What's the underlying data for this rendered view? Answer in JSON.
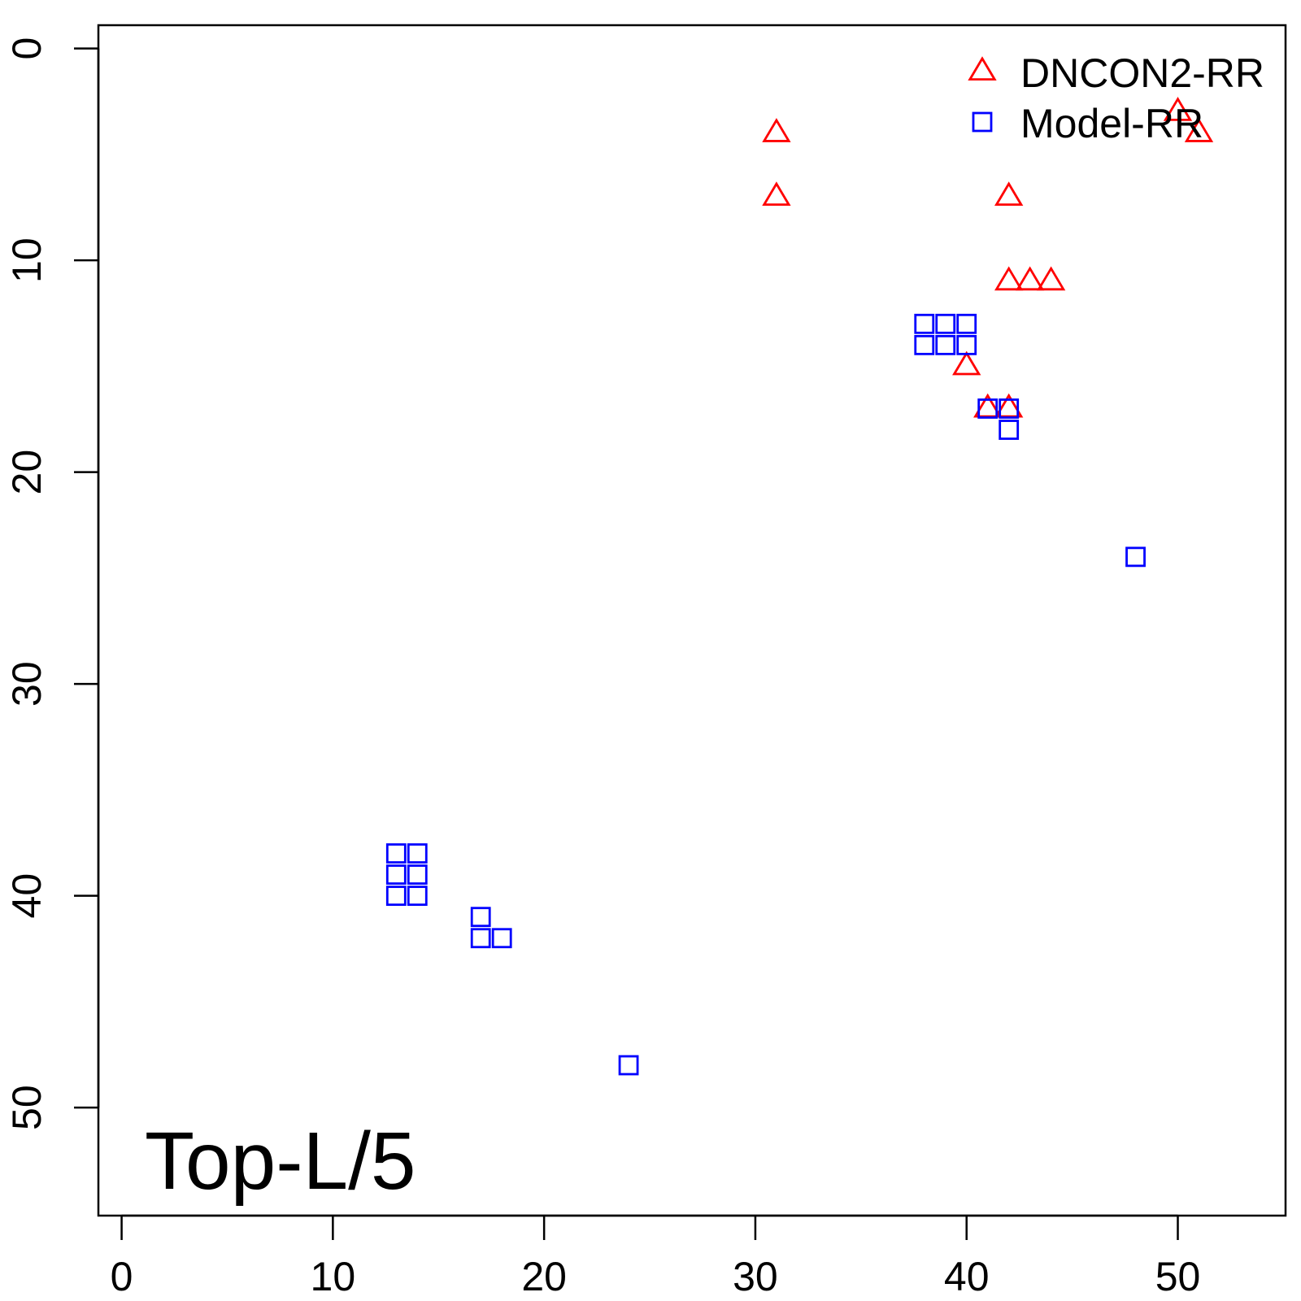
{
  "chart_data": {
    "type": "scatter",
    "title": "",
    "xlabel": "",
    "ylabel": "",
    "xlim": [
      -1.1,
      55.1
    ],
    "ylim": [
      -1.1,
      55.1
    ],
    "y_inverted": true,
    "x_ticks": [
      "0",
      "10",
      "20",
      "30",
      "40",
      "50"
    ],
    "y_ticks": [
      "0",
      "10",
      "20",
      "30",
      "40",
      "50"
    ],
    "annotation": "Top-L/5",
    "legend_position": "top-right",
    "grid": false,
    "series": [
      {
        "name": "DNCON2-RR",
        "marker": "triangle",
        "color": "#ff0000",
        "points": [
          [
            31,
            4
          ],
          [
            31,
            7
          ],
          [
            42,
            7
          ],
          [
            42,
            11
          ],
          [
            43,
            11
          ],
          [
            44,
            11
          ],
          [
            40,
            15
          ],
          [
            41,
            17
          ],
          [
            42,
            17
          ],
          [
            50,
            3
          ],
          [
            51,
            4
          ]
        ]
      },
      {
        "name": "Model-RR",
        "marker": "square",
        "color": "#0000ff",
        "points": [
          [
            38,
            13
          ],
          [
            39,
            13
          ],
          [
            40,
            13
          ],
          [
            38,
            14
          ],
          [
            39,
            14
          ],
          [
            40,
            14
          ],
          [
            41,
            17
          ],
          [
            42,
            17
          ],
          [
            42,
            18
          ],
          [
            48,
            24
          ],
          [
            13,
            38
          ],
          [
            14,
            38
          ],
          [
            13,
            39
          ],
          [
            14,
            39
          ],
          [
            13,
            40
          ],
          [
            14,
            40
          ],
          [
            17,
            41
          ],
          [
            17,
            42
          ],
          [
            18,
            42
          ],
          [
            24,
            48
          ]
        ]
      }
    ]
  }
}
